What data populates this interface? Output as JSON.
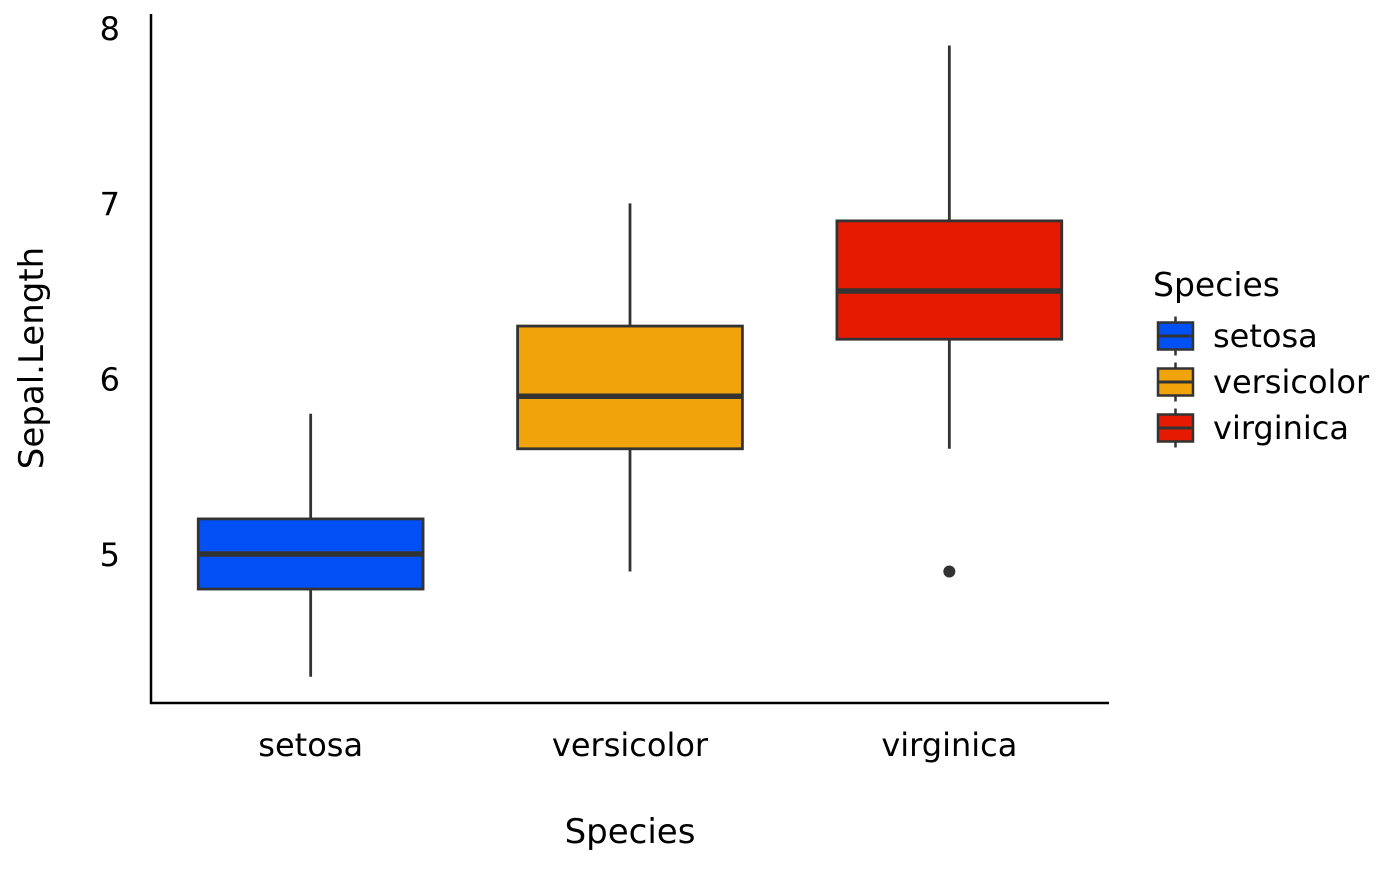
{
  "chart_data": {
    "type": "boxplot",
    "title": "",
    "xlabel": "Species",
    "ylabel": "Sepal.Length",
    "categories": [
      "setosa",
      "versicolor",
      "virginica"
    ],
    "y_ticks": [
      5,
      6,
      7,
      8
    ],
    "ylim": [
      4.15,
      8.08
    ],
    "grid": false,
    "legend": {
      "title": "Species",
      "placement": "right",
      "entries": [
        "setosa",
        "versicolor",
        "virginica"
      ]
    },
    "colors": [
      "#0050F5",
      "#F0A30A",
      "#E51A00"
    ],
    "box_border_color": "#333333",
    "boxes": [
      {
        "category": "setosa",
        "min": 4.3,
        "q1": 4.8,
        "median": 5.0,
        "q3": 5.2,
        "max": 5.8,
        "outliers": []
      },
      {
        "category": "versicolor",
        "min": 4.9,
        "q1": 5.6,
        "median": 5.9,
        "q3": 6.3,
        "max": 7.0,
        "outliers": []
      },
      {
        "category": "virginica",
        "min": 5.6,
        "q1": 6.225,
        "median": 6.5,
        "q3": 6.9,
        "max": 7.9,
        "outliers": [
          4.9
        ]
      }
    ]
  }
}
